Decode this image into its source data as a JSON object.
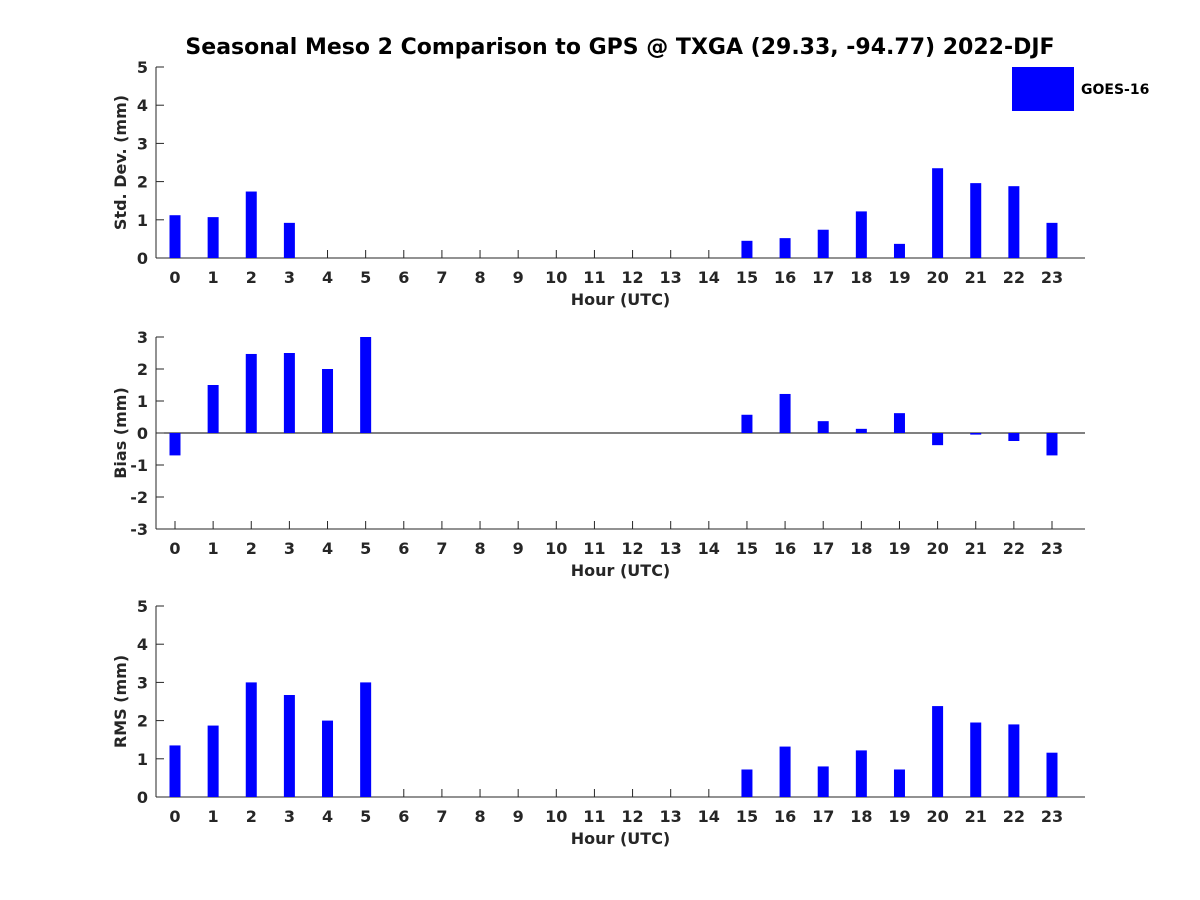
{
  "title": "Seasonal Meso 2 Comparison to GPS @ TXGA (29.33, -94.77) 2022-DJF",
  "legend": {
    "label": "GOES-16",
    "color": "#0000ff"
  },
  "chart_data": [
    {
      "type": "bar",
      "categories": [
        0,
        1,
        2,
        3,
        4,
        5,
        6,
        7,
        8,
        9,
        10,
        11,
        12,
        13,
        14,
        15,
        16,
        17,
        18,
        19,
        20,
        21,
        22,
        23
      ],
      "series": [
        {
          "name": "GOES-16",
          "values": [
            1.12,
            1.07,
            1.74,
            0.92,
            null,
            null,
            null,
            null,
            null,
            null,
            null,
            null,
            null,
            null,
            null,
            0.45,
            0.52,
            0.74,
            1.22,
            0.37,
            2.35,
            1.96,
            1.88,
            0.92
          ]
        }
      ],
      "xlabel": "Hour (UTC)",
      "ylabel": "Std. Dev. (mm)",
      "ylim": [
        0,
        5
      ],
      "yticks": [
        0,
        1,
        2,
        3,
        4,
        5
      ],
      "color": "#0000ff"
    },
    {
      "type": "bar",
      "categories": [
        0,
        1,
        2,
        3,
        4,
        5,
        6,
        7,
        8,
        9,
        10,
        11,
        12,
        13,
        14,
        15,
        16,
        17,
        18,
        19,
        20,
        21,
        22,
        23
      ],
      "series": [
        {
          "name": "GOES-16",
          "values": [
            -0.7,
            1.5,
            2.47,
            2.5,
            2.0,
            3.0,
            null,
            null,
            null,
            null,
            null,
            null,
            null,
            null,
            null,
            0.57,
            1.22,
            0.37,
            0.13,
            0.62,
            -0.38,
            -0.05,
            -0.25,
            -0.7
          ]
        }
      ],
      "xlabel": "Hour (UTC)",
      "ylabel": "Bias (mm)",
      "ylim": [
        -3,
        3
      ],
      "yticks": [
        -3,
        -2,
        -1,
        0,
        1,
        2,
        3
      ],
      "zero_line": true,
      "color": "#0000ff"
    },
    {
      "type": "bar",
      "categories": [
        0,
        1,
        2,
        3,
        4,
        5,
        6,
        7,
        8,
        9,
        10,
        11,
        12,
        13,
        14,
        15,
        16,
        17,
        18,
        19,
        20,
        21,
        22,
        23
      ],
      "series": [
        {
          "name": "GOES-16",
          "values": [
            1.35,
            1.87,
            3.0,
            2.67,
            2.0,
            3.0,
            null,
            null,
            null,
            null,
            null,
            null,
            null,
            null,
            null,
            0.72,
            1.32,
            0.8,
            1.22,
            0.72,
            2.38,
            1.95,
            1.9,
            1.16
          ]
        }
      ],
      "xlabel": "Hour (UTC)",
      "ylabel": "RMS (mm)",
      "ylim": [
        0,
        5
      ],
      "yticks": [
        0,
        1,
        2,
        3,
        4,
        5
      ],
      "color": "#0000ff"
    }
  ]
}
